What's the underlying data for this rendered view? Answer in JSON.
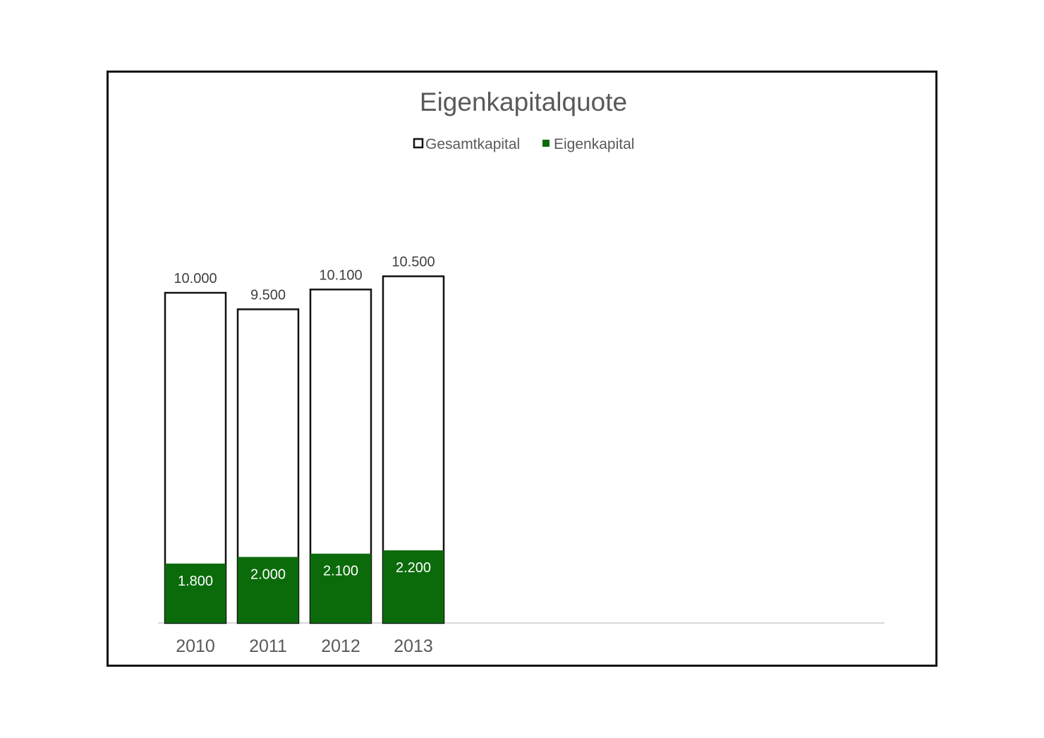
{
  "chart_data": {
    "type": "bar",
    "title": "Eigenkapitalquote",
    "categories": [
      "2010",
      "2011",
      "2012",
      "2013"
    ],
    "series": [
      {
        "name": "Gesamtkapital",
        "values": [
          10000,
          9500,
          10100,
          10500
        ],
        "labels": [
          "10.000",
          "9.500",
          "10.100",
          "10.500"
        ],
        "color": "#ffffff",
        "stroke": "#111111"
      },
      {
        "name": "Eigenkapital",
        "values": [
          1800,
          2000,
          2100,
          2200
        ],
        "labels": [
          "1.800",
          "2.000",
          "2.100",
          "2.200"
        ],
        "color": "#0b6b0b"
      }
    ],
    "ylim": [
      0,
      11000
    ],
    "grid": false,
    "legend": "top",
    "layout_note_overlap": "bars overlapped",
    "xlabel": "",
    "ylabel": ""
  }
}
